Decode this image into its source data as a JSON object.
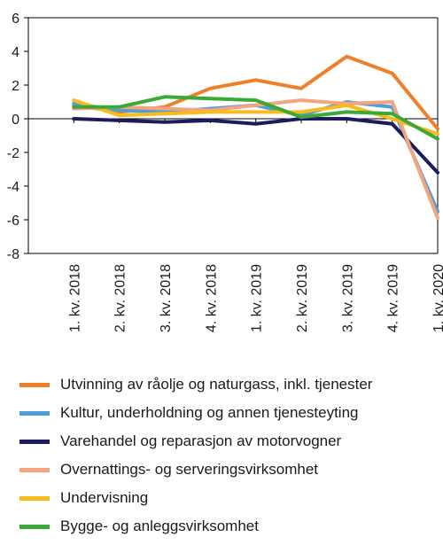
{
  "chart_data": {
    "type": "line",
    "title": "",
    "xlabel": "",
    "ylabel": "",
    "ylim": [
      -8,
      6
    ],
    "yticks": [
      6,
      4,
      2,
      0,
      -2,
      -4,
      -6,
      -8
    ],
    "categories": [
      "1. kv. 2018",
      "2. kv. 2018",
      "3. kv. 2018",
      "4. kv. 2018",
      "1. kv. 2019",
      "2. kv. 2019",
      "3. kv. 2019",
      "4. kv. 2019",
      "1. kv. 2020"
    ],
    "grid": false,
    "legend_position": "bottom",
    "series": [
      {
        "name": "Utvinning av råolje og naturgass, inkl. tjenester",
        "color": "#f07f2a",
        "values": [
          0.8,
          0.4,
          0.7,
          1.8,
          2.3,
          1.8,
          3.7,
          2.7,
          -0.6
        ]
      },
      {
        "name": "Kultur, underholdning og annen tjenesteyting",
        "color": "#4e9fd8",
        "values": [
          0.9,
          0.5,
          0.4,
          0.6,
          0.8,
          0.2,
          1.0,
          0.7,
          -5.5
        ]
      },
      {
        "name": "Varehandel og reparasjon av motorvogner",
        "color": "#1c1b5e",
        "values": [
          0.0,
          -0.1,
          -0.2,
          -0.1,
          -0.3,
          0.0,
          0.0,
          -0.3,
          -3.2
        ]
      },
      {
        "name": "Overnattings- og serveringsvirksomhet",
        "color": "#f4a57f",
        "values": [
          0.6,
          0.7,
          0.6,
          0.5,
          0.8,
          1.1,
          0.9,
          1.0,
          -5.9
        ]
      },
      {
        "name": "Undervisning",
        "color": "#f9bb1a",
        "values": [
          1.1,
          0.2,
          0.3,
          0.4,
          0.4,
          0.4,
          0.8,
          0.0,
          -0.9
        ]
      },
      {
        "name": "Bygge- og anleggsvirksomhet",
        "color": "#3aa935",
        "values": [
          0.7,
          0.7,
          1.3,
          1.2,
          1.1,
          0.1,
          0.4,
          0.3,
          -1.2
        ]
      }
    ]
  }
}
